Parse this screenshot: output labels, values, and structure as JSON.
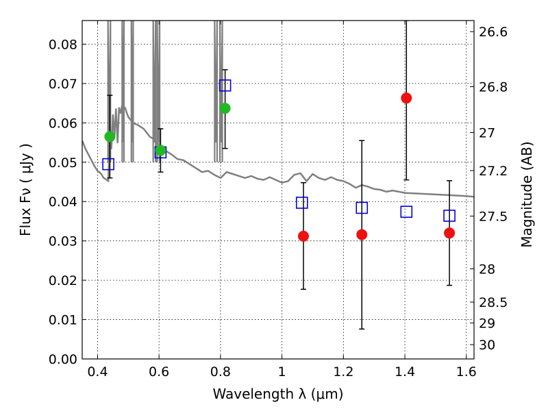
{
  "chart_data": {
    "type": "scatter",
    "xlabel": "Wavelength  λ (μm)",
    "ylabel_left": "Flux  Fν  ( μJy )",
    "ylabel_right": "Magnitude (AB)",
    "xlim": [
      0.35,
      1.625
    ],
    "ylim": [
      0.0,
      0.086
    ],
    "grid": true,
    "x_ticks": [
      0.4,
      0.6,
      0.8,
      1.0,
      1.2,
      1.4,
      1.6
    ],
    "x_tick_labels": [
      "0.4",
      "0.6",
      "0.8",
      "1",
      "1.2",
      "1.4",
      "1.6"
    ],
    "y_ticks": [
      0.0,
      0.01,
      0.02,
      0.03,
      0.04,
      0.05,
      0.06,
      0.07,
      0.08
    ],
    "y_tick_labels": [
      "0.00",
      "0.01",
      "0.02",
      "0.03",
      "0.04",
      "0.05",
      "0.06",
      "0.07",
      "0.08"
    ],
    "right_ticks": [
      {
        "label": "26.6",
        "mag": 26.6
      },
      {
        "label": "26.8",
        "mag": 26.8
      },
      {
        "label": "27",
        "mag": 27.0
      },
      {
        "label": "27.2",
        "mag": 27.2
      },
      {
        "label": "27.5",
        "mag": 27.5
      },
      {
        "label": "28",
        "mag": 28.0
      },
      {
        "label": "28.5",
        "mag": 28.5
      },
      {
        "label": "29",
        "mag": 29.0
      },
      {
        "label": "30",
        "mag": 30.0
      }
    ],
    "series": [
      {
        "name": "model spectrum",
        "style": "line",
        "color": "#808080",
        "x": [
          0.35,
          0.36,
          0.37,
          0.38,
          0.39,
          0.4,
          0.41,
          0.42,
          0.43,
          0.435,
          0.44,
          0.445,
          0.45,
          0.455,
          0.46,
          0.465,
          0.47,
          0.475,
          0.48,
          0.485,
          0.49,
          0.495,
          0.5,
          0.51,
          0.52,
          0.53,
          0.54,
          0.55,
          0.56,
          0.57,
          0.58,
          0.59,
          0.6,
          0.62,
          0.64,
          0.66,
          0.68,
          0.7,
          0.72,
          0.74,
          0.76,
          0.78,
          0.8,
          0.82,
          0.84,
          0.86,
          0.88,
          0.9,
          0.92,
          0.94,
          0.96,
          0.98,
          1.0,
          1.02,
          1.04,
          1.06,
          1.08,
          1.1,
          1.12,
          1.14,
          1.16,
          1.18,
          1.2,
          1.22,
          1.24,
          1.26,
          1.28,
          1.3,
          1.32,
          1.34,
          1.36,
          1.38,
          1.4,
          1.45,
          1.5,
          1.55,
          1.6,
          1.625
        ],
        "values": [
          0.0555,
          0.0535,
          0.052,
          0.0505,
          0.049,
          0.0478,
          0.0472,
          0.046,
          0.0455,
          0.0452,
          0.0575,
          0.0535,
          0.062,
          0.0565,
          0.0635,
          0.055,
          0.0638,
          0.0625,
          0.0645,
          0.064,
          0.0638,
          0.0625,
          0.0615,
          0.0605,
          0.0598,
          0.0595,
          0.059,
          0.0585,
          0.0575,
          0.0565,
          0.056,
          0.055,
          0.0545,
          0.053,
          0.052,
          0.0508,
          0.0505,
          0.0495,
          0.0485,
          0.0475,
          0.0478,
          0.0468,
          0.046,
          0.0475,
          0.047,
          0.0465,
          0.046,
          0.0465,
          0.0458,
          0.0455,
          0.0462,
          0.0455,
          0.0448,
          0.0452,
          0.0468,
          0.0472,
          0.0452,
          0.047,
          0.046,
          0.0455,
          0.0462,
          0.0455,
          0.0452,
          0.0445,
          0.0435,
          0.0442,
          0.0438,
          0.0432,
          0.043,
          0.0425,
          0.0428,
          0.0425,
          0.0422,
          0.042,
          0.0418,
          0.0416,
          0.0414,
          0.0412
        ]
      },
      {
        "name": "green points",
        "style": "filled-circle",
        "color": "#22b822",
        "x": [
          0.44,
          0.605,
          0.815
        ],
        "values": [
          0.0565,
          0.053,
          0.0637
        ],
        "err_low": [
          0.0105,
          0.0055,
          0.0
        ],
        "err_high": [
          0.0105,
          0.0055,
          0.0
        ]
      },
      {
        "name": "red points",
        "style": "filled-circle",
        "color": "#ee1111",
        "x": [
          1.07,
          1.26,
          1.405,
          1.545
        ],
        "values": [
          0.0312,
          0.0316,
          0.0663,
          0.032
        ],
        "err_low": [
          0.0135,
          0.024,
          0.0208,
          0.0133
        ],
        "err_high": [
          0.0136,
          0.0239,
          0.0197,
          0.0133
        ]
      },
      {
        "name": "blue squares",
        "style": "open-square",
        "color": "#0000dd",
        "x": [
          0.435,
          0.605,
          0.815,
          1.065,
          1.26,
          1.405,
          1.545
        ],
        "values": [
          0.0495,
          0.0525,
          0.0695,
          0.0397,
          0.0384,
          0.0374,
          0.0364
        ],
        "err_low": [
          0.0,
          0.0,
          0.016,
          0.0,
          0.0,
          0.0,
          0.0
        ],
        "err_high": [
          0.0,
          0.0,
          0.004,
          0.0,
          0.0,
          0.0,
          0.0
        ]
      }
    ],
    "emission_spikes": [
      {
        "x": 0.438,
        "width": 0.008
      },
      {
        "x": 0.483,
        "width": 0.006
      },
      {
        "x": 0.513,
        "width": 0.006
      },
      {
        "x": 0.585,
        "width": 0.008
      },
      {
        "x": 0.598,
        "width": 0.008
      },
      {
        "x": 0.785,
        "width": 0.008
      },
      {
        "x": 0.802,
        "width": 0.008
      }
    ]
  }
}
